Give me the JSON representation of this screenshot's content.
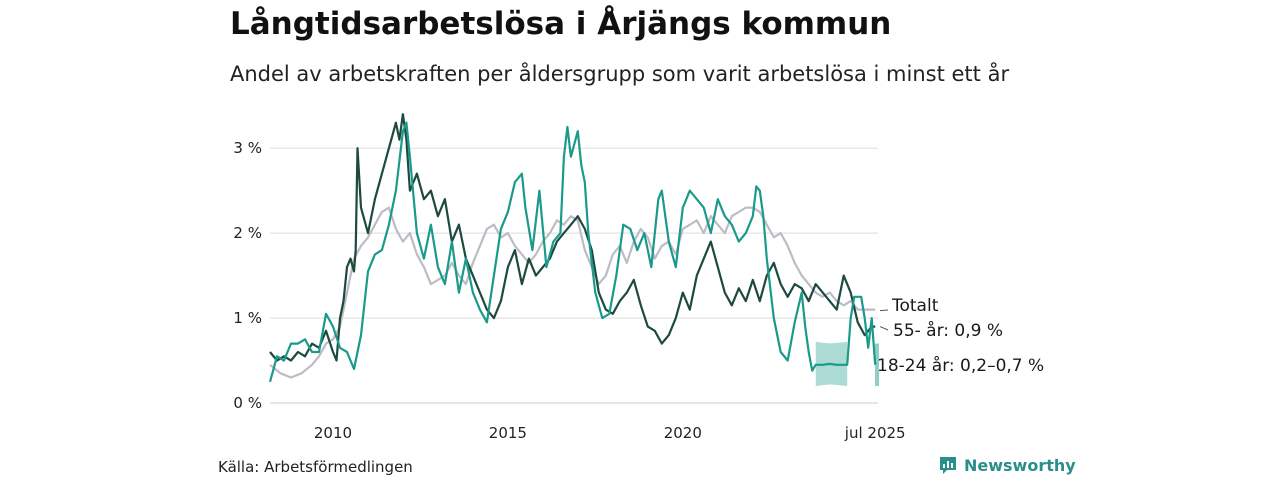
{
  "title": "Långtidsarbetslösa i Årjängs kommun",
  "subtitle": "Andel av arbetskraften per åldersgrupp som varit arbetslösa i minst ett år",
  "source": "Källa: Arbetsförmedlingen",
  "brand": "Newsworthy",
  "colors": {
    "total": "#bdbcc4",
    "age55": "#1d4a3f",
    "age1824": "#1a9a8b",
    "band": "#8fcfc5",
    "grid": "#dddddd",
    "brand": "#2a8f8c"
  },
  "chart_data": {
    "type": "line",
    "xlim": [
      2008.2,
      2025.58
    ],
    "ylim": [
      0,
      3.45
    ],
    "grid": "horizontal",
    "yticks": [
      {
        "v": 0,
        "label": "0 %"
      },
      {
        "v": 1,
        "label": "1 %"
      },
      {
        "v": 2,
        "label": "2 %"
      },
      {
        "v": 3,
        "label": "3 %"
      }
    ],
    "xticks": [
      {
        "v": 2010,
        "label": "2010"
      },
      {
        "v": 2015,
        "label": "2015"
      },
      {
        "v": 2020,
        "label": "2020"
      },
      {
        "v": 2025.5,
        "label": "jul 2025"
      }
    ],
    "series": [
      {
        "id": "total",
        "name": "Totalt",
        "label": "Totalt",
        "values": [
          [
            2008.2,
            0.45
          ],
          [
            2008.5,
            0.35
          ],
          [
            2008.8,
            0.3
          ],
          [
            2009.1,
            0.35
          ],
          [
            2009.4,
            0.45
          ],
          [
            2009.6,
            0.55
          ],
          [
            2009.8,
            0.7
          ],
          [
            2010.0,
            0.75
          ],
          [
            2010.2,
            0.9
          ],
          [
            2010.4,
            1.3
          ],
          [
            2010.6,
            1.7
          ],
          [
            2010.8,
            1.85
          ],
          [
            2011.0,
            1.95
          ],
          [
            2011.2,
            2.1
          ],
          [
            2011.4,
            2.25
          ],
          [
            2011.6,
            2.3
          ],
          [
            2011.8,
            2.05
          ],
          [
            2012.0,
            1.9
          ],
          [
            2012.2,
            2.0
          ],
          [
            2012.4,
            1.75
          ],
          [
            2012.6,
            1.6
          ],
          [
            2012.8,
            1.4
          ],
          [
            2013.0,
            1.45
          ],
          [
            2013.2,
            1.5
          ],
          [
            2013.4,
            1.65
          ],
          [
            2013.6,
            1.5
          ],
          [
            2013.8,
            1.4
          ],
          [
            2014.0,
            1.65
          ],
          [
            2014.2,
            1.85
          ],
          [
            2014.4,
            2.05
          ],
          [
            2014.6,
            2.1
          ],
          [
            2014.8,
            1.95
          ],
          [
            2015.0,
            2.0
          ],
          [
            2015.2,
            1.85
          ],
          [
            2015.4,
            1.75
          ],
          [
            2015.6,
            1.65
          ],
          [
            2015.8,
            1.75
          ],
          [
            2016.0,
            1.9
          ],
          [
            2016.2,
            2.0
          ],
          [
            2016.4,
            2.15
          ],
          [
            2016.6,
            2.1
          ],
          [
            2016.8,
            2.2
          ],
          [
            2017.0,
            2.15
          ],
          [
            2017.2,
            1.8
          ],
          [
            2017.4,
            1.6
          ],
          [
            2017.6,
            1.4
          ],
          [
            2017.8,
            1.5
          ],
          [
            2018.0,
            1.75
          ],
          [
            2018.2,
            1.85
          ],
          [
            2018.4,
            1.65
          ],
          [
            2018.6,
            1.9
          ],
          [
            2018.8,
            2.05
          ],
          [
            2019.0,
            1.95
          ],
          [
            2019.2,
            1.7
          ],
          [
            2019.4,
            1.85
          ],
          [
            2019.6,
            1.9
          ],
          [
            2019.8,
            1.75
          ],
          [
            2020.0,
            2.05
          ],
          [
            2020.2,
            2.1
          ],
          [
            2020.4,
            2.15
          ],
          [
            2020.6,
            2.0
          ],
          [
            2020.8,
            2.2
          ],
          [
            2021.0,
            2.1
          ],
          [
            2021.2,
            2.0
          ],
          [
            2021.4,
            2.2
          ],
          [
            2021.6,
            2.25
          ],
          [
            2021.8,
            2.3
          ],
          [
            2022.0,
            2.3
          ],
          [
            2022.2,
            2.25
          ],
          [
            2022.4,
            2.1
          ],
          [
            2022.6,
            1.95
          ],
          [
            2022.8,
            2.0
          ],
          [
            2023.0,
            1.85
          ],
          [
            2023.2,
            1.65
          ],
          [
            2023.4,
            1.5
          ],
          [
            2023.6,
            1.4
          ],
          [
            2023.8,
            1.3
          ],
          [
            2024.0,
            1.25
          ],
          [
            2024.2,
            1.3
          ],
          [
            2024.4,
            1.2
          ],
          [
            2024.6,
            1.15
          ],
          [
            2024.8,
            1.2
          ],
          [
            2025.0,
            1.1
          ],
          [
            2025.2,
            1.1
          ],
          [
            2025.5,
            1.1
          ]
        ]
      },
      {
        "id": "age55",
        "name": "55- år",
        "label": "55- år: 0,9 %",
        "values": [
          [
            2008.2,
            0.6
          ],
          [
            2008.4,
            0.5
          ],
          [
            2008.6,
            0.55
          ],
          [
            2008.8,
            0.5
          ],
          [
            2009.0,
            0.6
          ],
          [
            2009.2,
            0.55
          ],
          [
            2009.4,
            0.7
          ],
          [
            2009.6,
            0.65
          ],
          [
            2009.8,
            0.85
          ],
          [
            2010.0,
            0.6
          ],
          [
            2010.1,
            0.5
          ],
          [
            2010.2,
            1.0
          ],
          [
            2010.3,
            1.2
          ],
          [
            2010.4,
            1.6
          ],
          [
            2010.5,
            1.7
          ],
          [
            2010.6,
            1.55
          ],
          [
            2010.65,
            1.8
          ],
          [
            2010.7,
            3.0
          ],
          [
            2010.8,
            2.3
          ],
          [
            2011.0,
            2.0
          ],
          [
            2011.2,
            2.4
          ],
          [
            2011.4,
            2.7
          ],
          [
            2011.6,
            3.0
          ],
          [
            2011.8,
            3.3
          ],
          [
            2011.9,
            3.1
          ],
          [
            2012.0,
            3.4
          ],
          [
            2012.1,
            3.1
          ],
          [
            2012.2,
            2.5
          ],
          [
            2012.4,
            2.7
          ],
          [
            2012.6,
            2.4
          ],
          [
            2012.8,
            2.5
          ],
          [
            2013.0,
            2.2
          ],
          [
            2013.2,
            2.4
          ],
          [
            2013.4,
            1.9
          ],
          [
            2013.6,
            2.1
          ],
          [
            2013.8,
            1.7
          ],
          [
            2014.0,
            1.5
          ],
          [
            2014.2,
            1.3
          ],
          [
            2014.4,
            1.1
          ],
          [
            2014.6,
            1.0
          ],
          [
            2014.8,
            1.2
          ],
          [
            2015.0,
            1.6
          ],
          [
            2015.2,
            1.8
          ],
          [
            2015.4,
            1.4
          ],
          [
            2015.6,
            1.7
          ],
          [
            2015.8,
            1.5
          ],
          [
            2016.0,
            1.6
          ],
          [
            2016.2,
            1.7
          ],
          [
            2016.4,
            1.9
          ],
          [
            2016.6,
            2.0
          ],
          [
            2016.8,
            2.1
          ],
          [
            2017.0,
            2.2
          ],
          [
            2017.2,
            2.05
          ],
          [
            2017.4,
            1.8
          ],
          [
            2017.6,
            1.3
          ],
          [
            2017.8,
            1.1
          ],
          [
            2018.0,
            1.05
          ],
          [
            2018.2,
            1.2
          ],
          [
            2018.4,
            1.3
          ],
          [
            2018.6,
            1.45
          ],
          [
            2018.8,
            1.15
          ],
          [
            2019.0,
            0.9
          ],
          [
            2019.2,
            0.85
          ],
          [
            2019.4,
            0.7
          ],
          [
            2019.6,
            0.8
          ],
          [
            2019.8,
            1.0
          ],
          [
            2020.0,
            1.3
          ],
          [
            2020.2,
            1.1
          ],
          [
            2020.4,
            1.5
          ],
          [
            2020.6,
            1.7
          ],
          [
            2020.8,
            1.9
          ],
          [
            2021.0,
            1.6
          ],
          [
            2021.2,
            1.3
          ],
          [
            2021.4,
            1.15
          ],
          [
            2021.6,
            1.35
          ],
          [
            2021.8,
            1.2
          ],
          [
            2022.0,
            1.45
          ],
          [
            2022.2,
            1.2
          ],
          [
            2022.4,
            1.5
          ],
          [
            2022.6,
            1.65
          ],
          [
            2022.8,
            1.4
          ],
          [
            2023.0,
            1.25
          ],
          [
            2023.2,
            1.4
          ],
          [
            2023.4,
            1.35
          ],
          [
            2023.6,
            1.2
          ],
          [
            2023.8,
            1.4
          ],
          [
            2024.0,
            1.3
          ],
          [
            2024.2,
            1.2
          ],
          [
            2024.4,
            1.1
          ],
          [
            2024.6,
            1.5
          ],
          [
            2024.8,
            1.3
          ],
          [
            2025.0,
            0.95
          ],
          [
            2025.2,
            0.8
          ],
          [
            2025.4,
            0.9
          ],
          [
            2025.5,
            0.9
          ]
        ]
      },
      {
        "id": "age1824",
        "name": "18-24 år",
        "label": "18-24 år: 0,2–0,7 %",
        "values": [
          [
            2008.2,
            0.25
          ],
          [
            2008.4,
            0.55
          ],
          [
            2008.6,
            0.5
          ],
          [
            2008.8,
            0.7
          ],
          [
            2009.0,
            0.7
          ],
          [
            2009.2,
            0.75
          ],
          [
            2009.4,
            0.6
          ],
          [
            2009.6,
            0.6
          ],
          [
            2009.8,
            1.05
          ],
          [
            2010.0,
            0.9
          ],
          [
            2010.2,
            0.65
          ],
          [
            2010.4,
            0.6
          ],
          [
            2010.6,
            0.4
          ],
          [
            2010.8,
            0.8
          ],
          [
            2011.0,
            1.55
          ],
          [
            2011.2,
            1.75
          ],
          [
            2011.4,
            1.8
          ],
          [
            2011.6,
            2.1
          ],
          [
            2011.8,
            2.5
          ],
          [
            2012.0,
            3.2
          ],
          [
            2012.1,
            3.3
          ],
          [
            2012.2,
            2.9
          ],
          [
            2012.4,
            2.0
          ],
          [
            2012.6,
            1.7
          ],
          [
            2012.8,
            2.1
          ],
          [
            2013.0,
            1.6
          ],
          [
            2013.2,
            1.4
          ],
          [
            2013.4,
            1.9
          ],
          [
            2013.6,
            1.3
          ],
          [
            2013.8,
            1.7
          ],
          [
            2014.0,
            1.3
          ],
          [
            2014.2,
            1.1
          ],
          [
            2014.4,
            0.95
          ],
          [
            2014.6,
            1.5
          ],
          [
            2014.8,
            2.05
          ],
          [
            2015.0,
            2.25
          ],
          [
            2015.2,
            2.6
          ],
          [
            2015.4,
            2.7
          ],
          [
            2015.5,
            2.3
          ],
          [
            2015.7,
            1.8
          ],
          [
            2015.9,
            2.5
          ],
          [
            2016.1,
            1.6
          ],
          [
            2016.3,
            1.9
          ],
          [
            2016.5,
            2.0
          ],
          [
            2016.6,
            2.9
          ],
          [
            2016.7,
            3.25
          ],
          [
            2016.8,
            2.9
          ],
          [
            2017.0,
            3.2
          ],
          [
            2017.1,
            2.8
          ],
          [
            2017.2,
            2.6
          ],
          [
            2017.3,
            2.0
          ],
          [
            2017.5,
            1.3
          ],
          [
            2017.7,
            1.0
          ],
          [
            2017.9,
            1.05
          ],
          [
            2018.1,
            1.5
          ],
          [
            2018.3,
            2.1
          ],
          [
            2018.5,
            2.05
          ],
          [
            2018.7,
            1.8
          ],
          [
            2018.9,
            2.0
          ],
          [
            2019.1,
            1.6
          ],
          [
            2019.3,
            2.4
          ],
          [
            2019.4,
            2.5
          ],
          [
            2019.6,
            1.9
          ],
          [
            2019.8,
            1.6
          ],
          [
            2020.0,
            2.3
          ],
          [
            2020.2,
            2.5
          ],
          [
            2020.4,
            2.4
          ],
          [
            2020.6,
            2.3
          ],
          [
            2020.8,
            2.0
          ],
          [
            2021.0,
            2.4
          ],
          [
            2021.2,
            2.2
          ],
          [
            2021.4,
            2.1
          ],
          [
            2021.6,
            1.9
          ],
          [
            2021.8,
            2.0
          ],
          [
            2022.0,
            2.2
          ],
          [
            2022.1,
            2.55
          ],
          [
            2022.2,
            2.5
          ],
          [
            2022.3,
            2.2
          ],
          [
            2022.4,
            1.7
          ],
          [
            2022.6,
            1.0
          ],
          [
            2022.8,
            0.6
          ],
          [
            2023.0,
            0.5
          ],
          [
            2023.2,
            0.95
          ],
          [
            2023.4,
            1.3
          ],
          [
            2023.5,
            0.9
          ],
          [
            2023.6,
            0.6
          ],
          [
            2023.7,
            0.38
          ],
          [
            2023.8,
            0.45
          ],
          [
            2024.0,
            0.45
          ],
          [
            2024.2,
            0.46
          ],
          [
            2024.4,
            0.45
          ],
          [
            2024.7,
            0.45
          ],
          [
            2024.8,
            1.0
          ],
          [
            2024.9,
            1.25
          ],
          [
            2025.0,
            1.25
          ],
          [
            2025.1,
            1.25
          ],
          [
            2025.2,
            1.0
          ],
          [
            2025.3,
            0.65
          ],
          [
            2025.4,
            1.0
          ],
          [
            2025.5,
            0.45
          ]
        ]
      }
    ],
    "band": {
      "series": "18-24 år",
      "lower": [
        [
          2023.8,
          0.2
        ],
        [
          2024.2,
          0.22
        ],
        [
          2024.7,
          0.2
        ]
      ],
      "upper": [
        [
          2023.8,
          0.72
        ],
        [
          2024.2,
          0.7
        ],
        [
          2024.7,
          0.72
        ]
      ],
      "end": [
        0.2,
        0.7
      ]
    }
  }
}
